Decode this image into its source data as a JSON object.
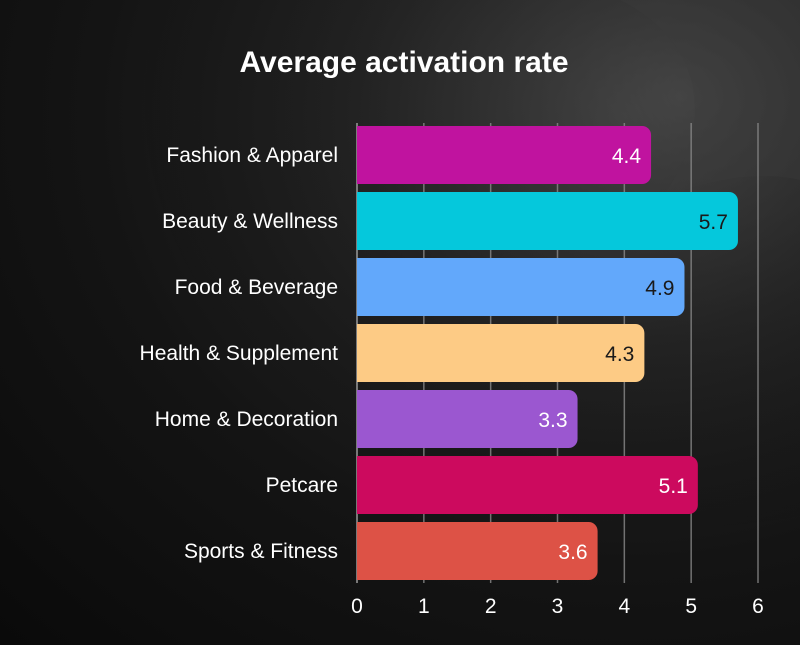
{
  "chart_data": {
    "type": "bar",
    "orientation": "horizontal",
    "title": "Average activation rate",
    "xlabel": "",
    "ylabel": "",
    "categories": [
      "Fashion & Apparel",
      "Beauty & Wellness",
      "Food & Beverage",
      "Health & Supplement",
      "Home & Decoration",
      "Petcare",
      "Sports & Fitness"
    ],
    "values": [
      4.4,
      5.7,
      4.9,
      4.3,
      3.3,
      5.1,
      3.6
    ],
    "value_labels": [
      "4.4",
      "5.7",
      "4.9",
      "4.3",
      "3.3",
      "5.1",
      "3.6"
    ],
    "bar_colors": [
      "#c0139f",
      "#05c8dc",
      "#62a8fb",
      "#fdcb85",
      "#9b57d0",
      "#cc0a5e",
      "#dd5246"
    ],
    "value_label_colors": [
      "#ffffff",
      "#1a1a1a",
      "#1a1a1a",
      "#1a1a1a",
      "#ffffff",
      "#ffffff",
      "#ffffff"
    ],
    "xlim": [
      0,
      6
    ],
    "xticks": [
      "0",
      "1",
      "2",
      "3",
      "4",
      "5",
      "6"
    ],
    "grid": true,
    "legend": "none",
    "background": "dark textured"
  }
}
